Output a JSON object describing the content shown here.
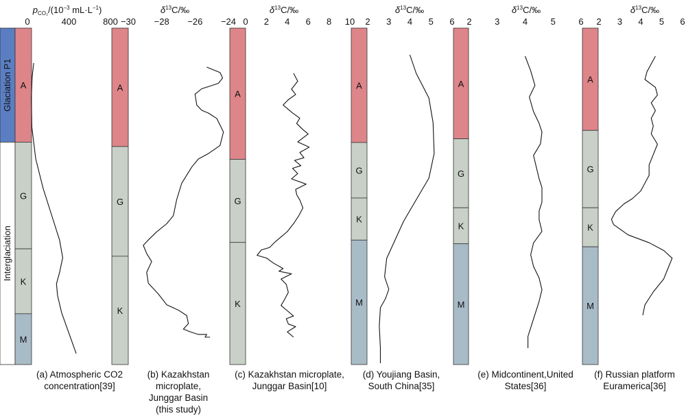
{
  "chart_data": [
    {
      "id": "a",
      "type": "line",
      "xlabel": "p_CO2/(10^-3 mL·L^-1)",
      "xticks": [
        "0",
        "400",
        "800"
      ],
      "xlim": [
        0,
        800
      ],
      "caption": [
        "(a) Atmospheric CO2",
        "concentration[39]"
      ],
      "x": [
        60,
        45,
        38,
        42,
        80,
        150,
        230,
        310,
        340,
        310,
        280,
        290,
        330,
        410,
        470
      ],
      "y": [
        0.0,
        0.05,
        0.12,
        0.22,
        0.33,
        0.43,
        0.52,
        0.61,
        0.67,
        0.72,
        0.76,
        0.8,
        0.86,
        0.94,
        1.0
      ]
    },
    {
      "id": "b",
      "type": "line",
      "xlabel": "δ13C/‰",
      "xticks": [
        "−30",
        "−28",
        "−26",
        "−24"
      ],
      "xlim": [
        -30,
        -24
      ],
      "caption": [
        "(b) Kazakhstan",
        "microplate,",
        "Junggar Basin",
        "(this study)"
      ],
      "x": [
        -25.3,
        -24.5,
        -24.35,
        -24.6,
        -25.1,
        -25.6,
        -26.0,
        -25.9,
        -25.6,
        -25.2,
        -24.7,
        -24.3,
        -24.5,
        -25.2,
        -25.8,
        -26.2,
        -26.8,
        -27.1,
        -27.3,
        -27.7,
        -28.3,
        -28.8,
        -29.1,
        -28.9,
        -28.6,
        -28.9,
        -28.8,
        -28.2,
        -27.7,
        -27.0,
        -26.5,
        -26.4,
        -26.7,
        -26.3,
        -25.8,
        -25.3,
        -25.4,
        -25.1
      ],
      "y": [
        0.0,
        0.02,
        0.04,
        0.06,
        0.07,
        0.08,
        0.1,
        0.14,
        0.16,
        0.17,
        0.19,
        0.24,
        0.29,
        0.32,
        0.34,
        0.37,
        0.43,
        0.49,
        0.55,
        0.58,
        0.61,
        0.64,
        0.66,
        0.69,
        0.72,
        0.76,
        0.8,
        0.84,
        0.88,
        0.9,
        0.92,
        0.95,
        0.97,
        0.98,
        0.99,
        0.99,
        1.0,
        1.0
      ]
    },
    {
      "id": "c",
      "type": "line",
      "xlabel": "δ13C/‰",
      "xticks": [
        "0",
        "2",
        "4",
        "6",
        "8",
        "10"
      ],
      "xlim": [
        0,
        10
      ],
      "caption": [
        "(c) Kazakhstan microplate,",
        "Junggar Basin[10]"
      ],
      "x": [
        4.6,
        5.0,
        4.4,
        4.8,
        4.1,
        3.6,
        4.5,
        5.2,
        4.9,
        5.4,
        6.0,
        5.0,
        6.1,
        5.2,
        5.6,
        4.7,
        5.3,
        4.5,
        5.0,
        4.4,
        5.8,
        4.8,
        4.9,
        5.2,
        5.5,
        5.1,
        4.6,
        4.0,
        3.4,
        2.8,
        2.3,
        1.5,
        1.1,
        2.0,
        2.7,
        3.6,
        3.2,
        4.4,
        3.4,
        3.9,
        4.1,
        3.7,
        3.4,
        4.0,
        4.6,
        3.9,
        4.1,
        4.8,
        4.0,
        4.6
      ],
      "y": [
        0.0,
        0.03,
        0.06,
        0.08,
        0.1,
        0.12,
        0.15,
        0.17,
        0.19,
        0.21,
        0.23,
        0.26,
        0.28,
        0.3,
        0.32,
        0.33,
        0.35,
        0.36,
        0.38,
        0.4,
        0.42,
        0.44,
        0.46,
        0.48,
        0.51,
        0.54,
        0.57,
        0.6,
        0.62,
        0.64,
        0.66,
        0.67,
        0.69,
        0.7,
        0.72,
        0.74,
        0.75,
        0.76,
        0.78,
        0.8,
        0.83,
        0.86,
        0.88,
        0.9,
        0.92,
        0.93,
        0.95,
        0.96,
        0.98,
        1.0
      ]
    },
    {
      "id": "d",
      "type": "line",
      "xlabel": "δ13C/‰",
      "xticks": [
        "2",
        "3",
        "4",
        "5",
        "6"
      ],
      "xlim": [
        2,
        6
      ],
      "caption": [
        "(d) Youjiang Basin,",
        "South China[35]"
      ],
      "x": [
        4.0,
        4.3,
        4.9,
        5.1,
        5.15,
        4.9,
        4.3,
        3.7,
        3.3,
        2.9,
        2.8,
        3.0,
        2.85,
        2.6,
        2.55,
        2.6,
        2.6
      ],
      "y": [
        0.0,
        0.06,
        0.14,
        0.22,
        0.32,
        0.4,
        0.47,
        0.54,
        0.6,
        0.66,
        0.72,
        0.76,
        0.79,
        0.82,
        0.88,
        0.95,
        1.0
      ]
    },
    {
      "id": "e",
      "type": "line",
      "xlabel": "δ13C/‰",
      "xticks": [
        "2",
        "3",
        "4",
        "5",
        "6"
      ],
      "xlim": [
        2,
        6
      ],
      "caption": [
        "(e) Midcontinent,United",
        "States[36]"
      ],
      "x": [
        4.0,
        4.2,
        4.35,
        4.15,
        4.3,
        4.5,
        4.6,
        4.55,
        4.3,
        4.4,
        4.5,
        4.6,
        4.6,
        4.5,
        4.5,
        4.6,
        4.3,
        4.2,
        4.3,
        4.5,
        4.6,
        4.5,
        4.3,
        4.1,
        4.1
      ],
      "y": [
        0.0,
        0.05,
        0.1,
        0.14,
        0.19,
        0.23,
        0.26,
        0.3,
        0.34,
        0.38,
        0.42,
        0.45,
        0.5,
        0.53,
        0.56,
        0.6,
        0.64,
        0.68,
        0.72,
        0.76,
        0.8,
        0.84,
        0.9,
        0.96,
        1.0
      ]
    },
    {
      "id": "f",
      "type": "line",
      "xlabel": "δ13C/‰",
      "xticks": [
        "2",
        "3",
        "4",
        "5",
        "6"
      ],
      "xlim": [
        2,
        6
      ],
      "caption": [
        "(f) Russian platform",
        "Euramerica[36]"
      ],
      "x": [
        4.7,
        4.5,
        4.3,
        4.2,
        4.7,
        4.8,
        4.5,
        4.7,
        4.5,
        4.6,
        4.5,
        4.8,
        4.6,
        4.4,
        4.4,
        4.2,
        4.0,
        3.6,
        3.2,
        2.8,
        2.6,
        2.7,
        3.4,
        4.4,
        5.1,
        5.5,
        5.3,
        5.1,
        4.6,
        4.2,
        4.1
      ],
      "y": [
        0.0,
        0.03,
        0.06,
        0.09,
        0.12,
        0.15,
        0.18,
        0.21,
        0.24,
        0.27,
        0.3,
        0.34,
        0.38,
        0.42,
        0.46,
        0.49,
        0.52,
        0.55,
        0.57,
        0.6,
        0.63,
        0.65,
        0.69,
        0.72,
        0.75,
        0.78,
        0.82,
        0.86,
        0.91,
        0.96,
        1.0
      ]
    }
  ],
  "columns": [
    {
      "units": [
        {
          "label": "A",
          "color": "#de858a",
          "from": 0.0,
          "to": 0.339
        },
        {
          "label": "G",
          "color": "#c8d0c8",
          "from": 0.339,
          "to": 0.656
        },
        {
          "label": "K",
          "color": "#c8d0c8",
          "from": 0.656,
          "to": 0.849
        },
        {
          "label": "M",
          "color": "#a8bcc8",
          "from": 0.849,
          "to": 1.0
        }
      ]
    },
    {
      "units": [
        {
          "label": "A",
          "color": "#de858a",
          "from": 0.0,
          "to": 0.352
        },
        {
          "label": "G",
          "color": "#c8d0c8",
          "from": 0.352,
          "to": 0.678
        },
        {
          "label": "K",
          "color": "#c8d0c8",
          "from": 0.678,
          "to": 1.0
        }
      ]
    },
    {
      "units": [
        {
          "label": "A",
          "color": "#de858a",
          "from": 0.0,
          "to": 0.39
        },
        {
          "label": "G",
          "color": "#c8d0c8",
          "from": 0.39,
          "to": 0.637
        },
        {
          "label": "K",
          "color": "#c8d0c8",
          "from": 0.637,
          "to": 1.0
        }
      ]
    },
    {
      "units": [
        {
          "label": "A",
          "color": "#de858a",
          "from": 0.0,
          "to": 0.34
        },
        {
          "label": "G",
          "color": "#c8d0c8",
          "from": 0.34,
          "to": 0.505
        },
        {
          "label": "K",
          "color": "#c8d0c8",
          "from": 0.505,
          "to": 0.63
        },
        {
          "label": "M",
          "color": "#a8bcc8",
          "from": 0.63,
          "to": 1.0
        }
      ]
    },
    {
      "units": [
        {
          "label": "A",
          "color": "#de858a",
          "from": 0.0,
          "to": 0.329
        },
        {
          "label": "G",
          "color": "#c8d0c8",
          "from": 0.329,
          "to": 0.534
        },
        {
          "label": "K",
          "color": "#c8d0c8",
          "from": 0.534,
          "to": 0.641
        },
        {
          "label": "M",
          "color": "#a8bcc8",
          "from": 0.641,
          "to": 1.0
        }
      ]
    },
    {
      "units": [
        {
          "label": "A",
          "color": "#de858a",
          "from": 0.0,
          "to": 0.304
        },
        {
          "label": "G",
          "color": "#c8d0c8",
          "from": 0.304,
          "to": 0.534
        },
        {
          "label": "K",
          "color": "#c8d0c8",
          "from": 0.534,
          "to": 0.65
        },
        {
          "label": "M",
          "color": "#a8bcc8",
          "from": 0.65,
          "to": 1.0
        }
      ]
    }
  ],
  "stages": [
    {
      "label": "Glaciation P1",
      "color": "#5b7ec3"
    },
    {
      "label": "Interglaciation",
      "color": "#ffffff"
    }
  ],
  "glaciation_fraction": 0.339,
  "colors": {
    "line": "#111111",
    "border": "#333333"
  }
}
